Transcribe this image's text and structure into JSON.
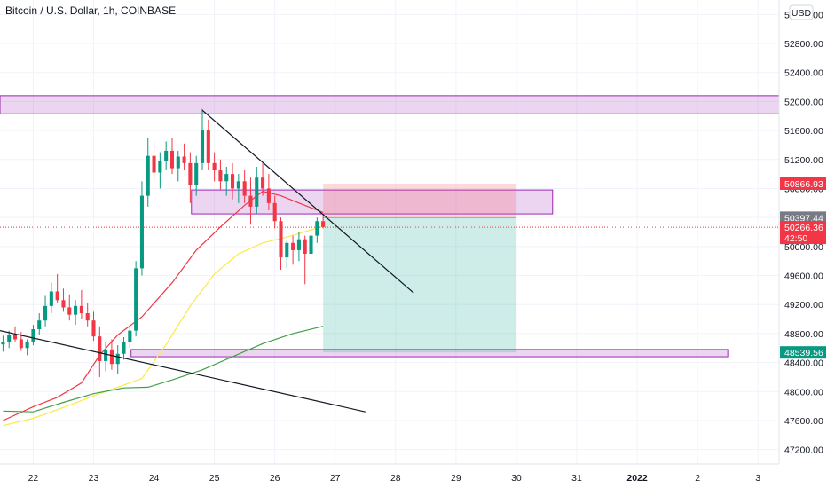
{
  "header": {
    "title": "Bitcoin / U.S. Dollar, 1h, COINBASE",
    "currency_button": "USD"
  },
  "chart_data": {
    "type": "candlestick",
    "title": "Bitcoin / U.S. Dollar, 1h, COINBASE",
    "currency": "USD",
    "y_ticks": [
      "53200.00",
      "52800.00",
      "52400.00",
      "52000.00",
      "51600.00",
      "51200.00",
      "50800.00",
      "50400.00",
      "50000.00",
      "49600.00",
      "49200.00",
      "48800.00",
      "48400.00",
      "48000.00",
      "47600.00",
      "47200.00"
    ],
    "y_tick_values": [
      53200,
      52800,
      52400,
      52000,
      51600,
      51200,
      50800,
      50400,
      50000,
      49600,
      49200,
      48800,
      48400,
      48000,
      47600,
      47200
    ],
    "ylim": [
      47000,
      53400
    ],
    "x_ticks": [
      "22",
      "23",
      "24",
      "25",
      "26",
      "27",
      "28",
      "29",
      "30",
      "31",
      "2022",
      "2",
      "3"
    ],
    "x_tick_days": [
      22,
      23,
      24,
      25,
      26,
      27,
      28,
      29,
      30,
      31,
      32,
      33,
      34
    ],
    "xlim": [
      21.45,
      34.35
    ],
    "grid": true,
    "price_tags": [
      {
        "label": "50866.93",
        "value": 50866.93,
        "color": "#f23645"
      },
      {
        "label": "50397.44",
        "value": 50397.44,
        "color": "#787b86"
      },
      {
        "label": "50266.36",
        "value": 50266.36,
        "color": "#f23645",
        "countdown": "42:50"
      },
      {
        "label": "48539.56",
        "value": 48539.56,
        "color": "#089981"
      }
    ],
    "position": {
      "entry": 50397.44,
      "stop": 50866.93,
      "target": 48539.56,
      "start_day": 26.8,
      "end_day": 30.0,
      "stop_color": "#f7525f",
      "target_color": "#22ab94"
    },
    "zones": [
      {
        "low": 51830,
        "high": 52080,
        "start_day": 21.45,
        "end_day": 34.35
      },
      {
        "low": 50450,
        "high": 50780,
        "start_day": 24.62,
        "end_day": 30.6
      },
      {
        "low": 48480,
        "high": 48580,
        "start_day": 23.62,
        "end_day": 33.5
      }
    ],
    "trendlines": [
      {
        "from": [
          24.8,
          51880
        ],
        "to": [
          28.3,
          49360
        ]
      },
      {
        "from": [
          21.45,
          48840
        ],
        "to": [
          27.5,
          47720
        ]
      }
    ],
    "moving_averages": [
      {
        "color": "#f23645",
        "points": [
          [
            21.5,
            47600
          ],
          [
            22,
            47790
          ],
          [
            22.4,
            47920
          ],
          [
            22.8,
            48120
          ],
          [
            23.1,
            48500
          ],
          [
            23.4,
            48780
          ],
          [
            23.8,
            49030
          ],
          [
            24.3,
            49500
          ],
          [
            24.7,
            49950
          ],
          [
            25.1,
            50270
          ],
          [
            25.5,
            50570
          ],
          [
            25.8,
            50760
          ],
          [
            26.1,
            50700
          ],
          [
            26.4,
            50600
          ],
          [
            26.8,
            50470
          ]
        ]
      },
      {
        "color": "#fbe947",
        "points": [
          [
            21.5,
            47530
          ],
          [
            22,
            47630
          ],
          [
            22.5,
            47780
          ],
          [
            23,
            47940
          ],
          [
            23.5,
            48090
          ],
          [
            23.8,
            48180
          ],
          [
            24.2,
            48650
          ],
          [
            24.6,
            49180
          ],
          [
            25,
            49620
          ],
          [
            25.4,
            49900
          ],
          [
            25.8,
            50050
          ],
          [
            26.2,
            50130
          ],
          [
            26.8,
            50280
          ]
        ]
      },
      {
        "color": "#43a047",
        "points": [
          [
            21.5,
            47730
          ],
          [
            22,
            47720
          ],
          [
            22.5,
            47850
          ],
          [
            23,
            47970
          ],
          [
            23.5,
            48050
          ],
          [
            23.9,
            48060
          ],
          [
            24.3,
            48160
          ],
          [
            24.8,
            48300
          ],
          [
            25.3,
            48480
          ],
          [
            25.8,
            48660
          ],
          [
            26.3,
            48800
          ],
          [
            26.8,
            48900
          ]
        ]
      }
    ],
    "candles": [
      [
        21.5,
        48650,
        48770,
        48550,
        48680
      ],
      [
        21.6,
        48680,
        48840,
        48600,
        48780
      ],
      [
        21.7,
        48780,
        48900,
        48690,
        48720
      ],
      [
        21.8,
        48720,
        48820,
        48560,
        48600
      ],
      [
        21.9,
        48600,
        48720,
        48500,
        48690
      ],
      [
        22.0,
        48690,
        48920,
        48640,
        48860
      ],
      [
        22.1,
        48860,
        49080,
        48780,
        48980
      ],
      [
        22.2,
        48980,
        49320,
        48900,
        49180
      ],
      [
        22.3,
        49180,
        49500,
        49080,
        49380
      ],
      [
        22.4,
        49380,
        49620,
        49220,
        49260
      ],
      [
        22.5,
        49260,
        49420,
        49100,
        49160
      ],
      [
        22.6,
        49160,
        49340,
        48980,
        49060
      ],
      [
        22.7,
        49060,
        49260,
        48920,
        49180
      ],
      [
        22.8,
        49180,
        49400,
        49000,
        49080
      ],
      [
        22.9,
        49080,
        49220,
        48900,
        48980
      ],
      [
        23.0,
        48980,
        49100,
        48700,
        48760
      ],
      [
        23.1,
        48760,
        48900,
        48200,
        48420
      ],
      [
        23.2,
        48420,
        48680,
        48280,
        48580
      ],
      [
        23.3,
        48580,
        48720,
        48300,
        48380
      ],
      [
        23.4,
        48380,
        48640,
        48240,
        48520
      ],
      [
        23.5,
        48520,
        48750,
        48440,
        48680
      ],
      [
        23.6,
        48680,
        48900,
        48600,
        48840
      ],
      [
        23.7,
        48840,
        49800,
        48760,
        49700
      ],
      [
        23.8,
        49700,
        50900,
        49600,
        50700
      ],
      [
        23.9,
        50700,
        51500,
        50550,
        51250
      ],
      [
        24.0,
        51250,
        51450,
        50900,
        51020
      ],
      [
        24.1,
        51020,
        51300,
        50800,
        51180
      ],
      [
        24.2,
        51180,
        51450,
        51050,
        51320
      ],
      [
        24.3,
        51320,
        51500,
        51000,
        51080
      ],
      [
        24.4,
        51080,
        51320,
        50900,
        51240
      ],
      [
        24.5,
        51240,
        51420,
        51050,
        51150
      ],
      [
        24.6,
        51150,
        51300,
        50600,
        50850
      ],
      [
        24.7,
        50850,
        51250,
        50700,
        51150
      ],
      [
        24.8,
        51150,
        51900,
        51050,
        51600
      ],
      [
        24.9,
        51600,
        51750,
        51050,
        51150
      ],
      [
        25.0,
        51150,
        51300,
        50900,
        51050
      ],
      [
        25.1,
        51050,
        51200,
        50780,
        50900
      ],
      [
        25.2,
        50900,
        51100,
        50700,
        51000
      ],
      [
        25.3,
        51000,
        51150,
        50650,
        50800
      ],
      [
        25.4,
        50800,
        51000,
        50600,
        50900
      ],
      [
        25.5,
        50900,
        51050,
        50600,
        50700
      ],
      [
        25.6,
        50700,
        50950,
        50300,
        50550
      ],
      [
        25.7,
        50550,
        51100,
        50450,
        50950
      ],
      [
        25.8,
        50950,
        51150,
        50700,
        50800
      ],
      [
        25.9,
        50800,
        51000,
        50500,
        50600
      ],
      [
        26.0,
        50600,
        50700,
        50250,
        50350
      ],
      [
        26.1,
        50350,
        50400,
        49680,
        49850
      ],
      [
        26.2,
        49850,
        50100,
        49700,
        50050
      ],
      [
        26.3,
        50050,
        50150,
        49750,
        49950
      ],
      [
        26.4,
        49950,
        50200,
        49800,
        50100
      ],
      [
        26.5,
        50100,
        50150,
        49480,
        49900
      ],
      [
        26.6,
        49900,
        50250,
        49800,
        50150
      ],
      [
        26.7,
        50150,
        50400,
        50050,
        50350
      ],
      [
        26.8,
        50350,
        50450,
        50250,
        50270
      ]
    ]
  }
}
